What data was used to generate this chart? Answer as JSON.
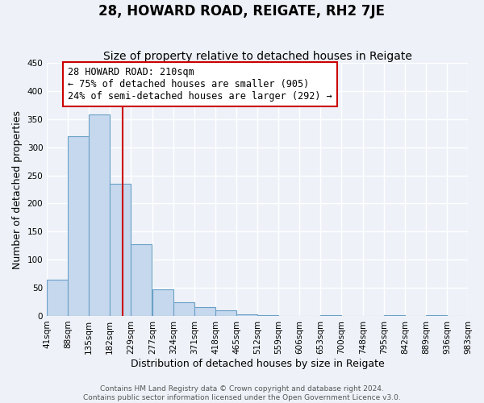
{
  "title": "28, HOWARD ROAD, REIGATE, RH2 7JE",
  "subtitle": "Size of property relative to detached houses in Reigate",
  "xlabel": "Distribution of detached houses by size in Reigate",
  "ylabel": "Number of detached properties",
  "bar_values": [
    65,
    320,
    358,
    235,
    127,
    47,
    25,
    15,
    10,
    3,
    1,
    0,
    0,
    1,
    0,
    0,
    1,
    0,
    1,
    0
  ],
  "bar_left_edges": [
    41,
    88,
    135,
    182,
    229,
    277,
    324,
    371,
    418,
    465,
    512,
    559,
    606,
    653,
    700,
    748,
    795,
    842,
    889,
    936
  ],
  "bin_width": 47,
  "xtick_labels": [
    "41sqm",
    "88sqm",
    "135sqm",
    "182sqm",
    "229sqm",
    "277sqm",
    "324sqm",
    "371sqm",
    "418sqm",
    "465sqm",
    "512sqm",
    "559sqm",
    "606sqm",
    "653sqm",
    "700sqm",
    "748sqm",
    "795sqm",
    "842sqm",
    "889sqm",
    "936sqm",
    "983sqm"
  ],
  "ylim": [
    0,
    450
  ],
  "yticks": [
    0,
    50,
    100,
    150,
    200,
    250,
    300,
    350,
    400,
    450
  ],
  "bar_color": "#c5d8ed",
  "bar_edge_color": "#6aa0c7",
  "property_line_x": 210,
  "property_line_color": "#cc0000",
  "annotation_line1": "28 HOWARD ROAD: 210sqm",
  "annotation_line2": "← 75% of detached houses are smaller (905)",
  "annotation_line3": "24% of semi-detached houses are larger (292) →",
  "annotation_box_color": "#cc0000",
  "footer_line1": "Contains HM Land Registry data © Crown copyright and database right 2024.",
  "footer_line2": "Contains public sector information licensed under the Open Government Licence v3.0.",
  "background_color": "#eef2f8",
  "grid_color": "#ffffff",
  "title_fontsize": 12,
  "subtitle_fontsize": 10,
  "axis_label_fontsize": 9,
  "tick_fontsize": 7.5,
  "annotation_fontsize": 8.5,
  "footer_fontsize": 6.5
}
